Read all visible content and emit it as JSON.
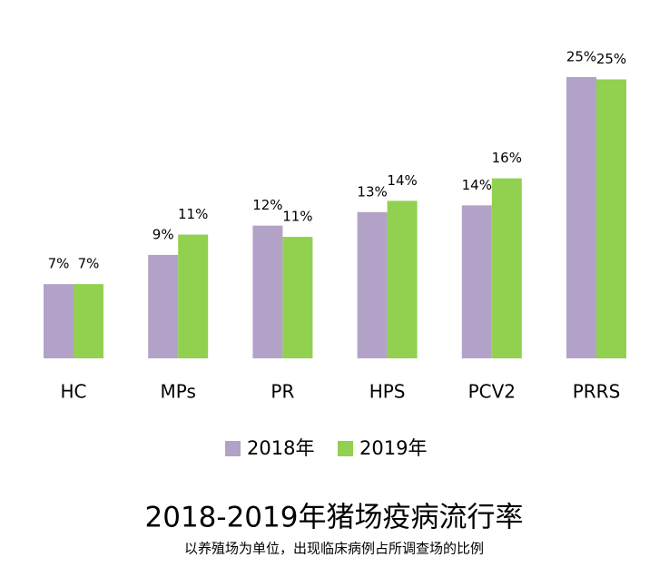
{
  "chart_data": {
    "type": "bar",
    "title": "2018-2019年猪场疫病流行率",
    "subtitle": "以养殖场为单位，出现临床病例占所调查场的比例",
    "categories": [
      "HC",
      "MPs",
      "PR",
      "HPS",
      "PCV2",
      "PRRS"
    ],
    "series": [
      {
        "name": "2018年",
        "color": "#b3a2c7",
        "values": [
          6.6,
          9.2,
          11.8,
          13.0,
          13.6,
          25.0
        ],
        "value_labels": [
          "7%",
          "9%",
          "12%",
          "13%",
          "14%",
          "25%"
        ]
      },
      {
        "name": "2019年",
        "color": "#92d050",
        "values": [
          6.6,
          11.0,
          10.8,
          14.0,
          16.0,
          24.8
        ],
        "value_labels": [
          "7%",
          "11%",
          "11%",
          "14%",
          "16%",
          "25%"
        ]
      }
    ]
  }
}
